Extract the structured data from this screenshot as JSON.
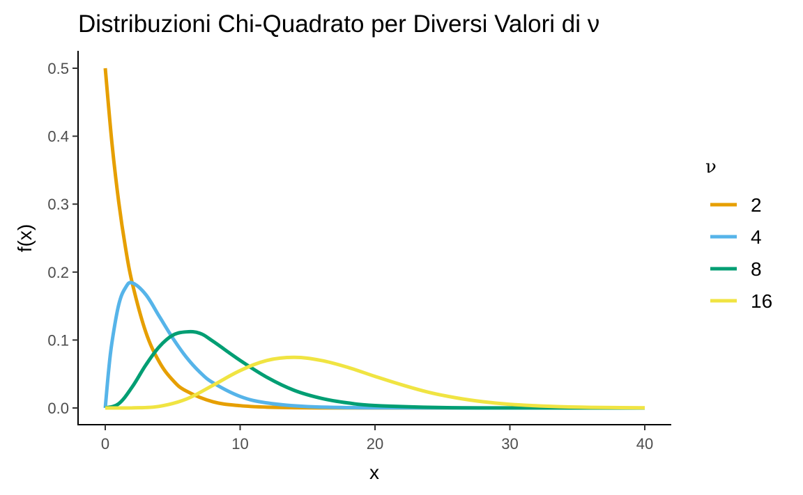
{
  "chart_data": {
    "type": "line",
    "title": "Distribuzioni Chi-Quadrato per Diversi Valori di ν",
    "xlabel": "x",
    "ylabel": "f(x)",
    "xlim": [
      0,
      40
    ],
    "ylim": [
      0,
      0.5
    ],
    "x_ticks": [
      0,
      10,
      20,
      30,
      40
    ],
    "x_tick_labels": [
      "0",
      "10",
      "20",
      "30",
      "40"
    ],
    "y_ticks": [
      0,
      0.1,
      0.2,
      0.3,
      0.4,
      0.5
    ],
    "y_tick_labels": [
      "0.0",
      "0.1",
      "0.2",
      "0.3",
      "0.4",
      "0.5"
    ],
    "grid": false,
    "legend": {
      "title": "ν",
      "position": "right"
    },
    "series": [
      {
        "name": "2",
        "df": 2,
        "color": "#E69F00",
        "points": [
          [
            0,
            0.5
          ],
          [
            0.5,
            0.389
          ],
          [
            1,
            0.303
          ],
          [
            1.5,
            0.236
          ],
          [
            2,
            0.184
          ],
          [
            3,
            0.112
          ],
          [
            4,
            0.068
          ],
          [
            5,
            0.041
          ],
          [
            6,
            0.025
          ],
          [
            8,
            0.009
          ],
          [
            10,
            0.0034
          ],
          [
            12,
            0.0012
          ],
          [
            15,
            0.0003
          ],
          [
            20,
            2e-05
          ],
          [
            30,
            0
          ],
          [
            40,
            0
          ]
        ]
      },
      {
        "name": "4",
        "df": 4,
        "color": "#56B4E9",
        "points": [
          [
            0,
            0
          ],
          [
            0.25,
            0.055
          ],
          [
            0.5,
            0.097
          ],
          [
            1,
            0.152
          ],
          [
            1.5,
            0.177
          ],
          [
            2,
            0.184
          ],
          [
            3,
            0.167
          ],
          [
            4,
            0.135
          ],
          [
            5,
            0.103
          ],
          [
            6,
            0.075
          ],
          [
            7,
            0.053
          ],
          [
            8,
            0.037
          ],
          [
            10,
            0.017
          ],
          [
            12,
            0.0074
          ],
          [
            15,
            0.0021
          ],
          [
            20,
            0.0002
          ],
          [
            30,
            0
          ],
          [
            40,
            0
          ]
        ]
      },
      {
        "name": "8",
        "df": 8,
        "color": "#009E73",
        "points": [
          [
            0,
            0
          ],
          [
            1,
            0.0063
          ],
          [
            2,
            0.031
          ],
          [
            3,
            0.063
          ],
          [
            4,
            0.09
          ],
          [
            5,
            0.107
          ],
          [
            6,
            0.112
          ],
          [
            7,
            0.11
          ],
          [
            8,
            0.098
          ],
          [
            10,
            0.07
          ],
          [
            12,
            0.045
          ],
          [
            14,
            0.026
          ],
          [
            16,
            0.0143
          ],
          [
            18,
            0.0074
          ],
          [
            20,
            0.0036
          ],
          [
            25,
            0.0006
          ],
          [
            30,
            0.0001
          ],
          [
            40,
            0
          ]
        ]
      },
      {
        "name": "16",
        "df": 16,
        "color": "#F0E442",
        "points": [
          [
            0,
            0
          ],
          [
            2,
            0.00014
          ],
          [
            4,
            0.0024
          ],
          [
            6,
            0.013
          ],
          [
            8,
            0.0335
          ],
          [
            10,
            0.055
          ],
          [
            12,
            0.07
          ],
          [
            14,
            0.0745
          ],
          [
            16,
            0.07
          ],
          [
            18,
            0.0597
          ],
          [
            20,
            0.0465
          ],
          [
            22,
            0.034
          ],
          [
            24,
            0.023
          ],
          [
            26,
            0.015
          ],
          [
            28,
            0.0092
          ],
          [
            30,
            0.0054
          ],
          [
            33,
            0.0024
          ],
          [
            36,
            0.0009
          ],
          [
            40,
            0.0003
          ]
        ]
      }
    ]
  }
}
